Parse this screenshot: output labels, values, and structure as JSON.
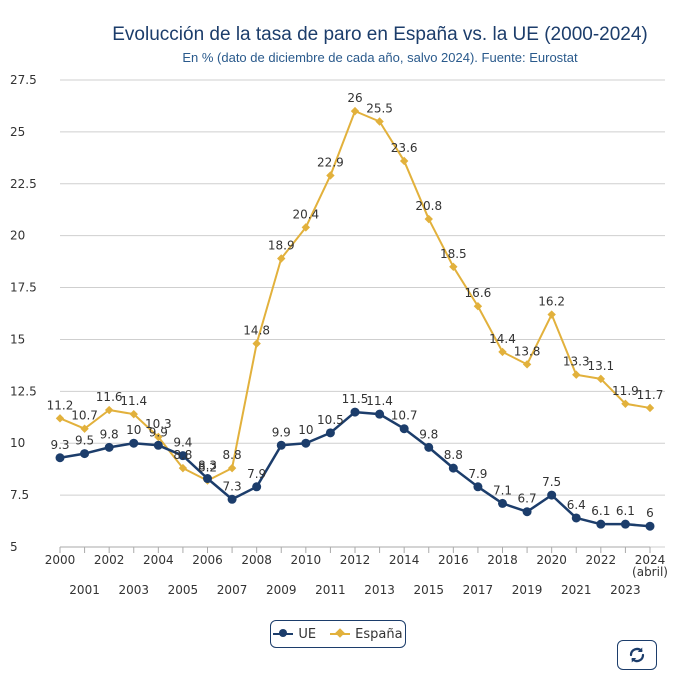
{
  "chart_data": {
    "type": "line",
    "title": "Evolucción de la tasa de paro en España vs. la UE (2000-2024)",
    "subtitle": "En % (dato de diciembre de cada año, salvo 2024). Fuente: Eurostat",
    "categories": [
      "2000",
      "2001",
      "2002",
      "2003",
      "2004",
      "2005",
      "2006",
      "2007",
      "2008",
      "2009",
      "2010",
      "2011",
      "2012",
      "2013",
      "2014",
      "2015",
      "2016",
      "2017",
      "2018",
      "2019",
      "2020",
      "2021",
      "2022",
      "2023",
      "2024"
    ],
    "last_category_note": "(abril)",
    "series": [
      {
        "name": "UE",
        "color": "#1c3d6b",
        "marker": "circle",
        "values": [
          9.3,
          9.5,
          9.8,
          10,
          9.9,
          9.4,
          8.3,
          7.3,
          7.9,
          9.9,
          10,
          10.5,
          11.5,
          11.4,
          10.7,
          9.8,
          8.8,
          7.9,
          7.1,
          6.7,
          7.5,
          6.4,
          6.1,
          6.1,
          6
        ]
      },
      {
        "name": "España",
        "color": "#e2b13c",
        "marker": "diamond",
        "values": [
          11.2,
          10.7,
          11.6,
          11.4,
          10.3,
          8.8,
          8.2,
          8.8,
          14.8,
          18.9,
          20.4,
          22.9,
          26,
          25.5,
          23.6,
          20.8,
          18.5,
          16.6,
          14.4,
          13.8,
          16.2,
          13.3,
          13.1,
          11.9,
          11.7
        ]
      }
    ],
    "ylim": [
      5,
      27.5
    ],
    "yticks": [
      "5",
      "7.5",
      "10",
      "12.5",
      "15",
      "17.5",
      "20",
      "22.5",
      "25",
      "27.5"
    ],
    "xlabel": "",
    "ylabel": "",
    "grid": true,
    "legend_position": "bottom-center"
  },
  "legend": {
    "ue_label": "UE",
    "espana_label": "España"
  },
  "controls": {
    "reset_icon": "refresh-icon"
  }
}
